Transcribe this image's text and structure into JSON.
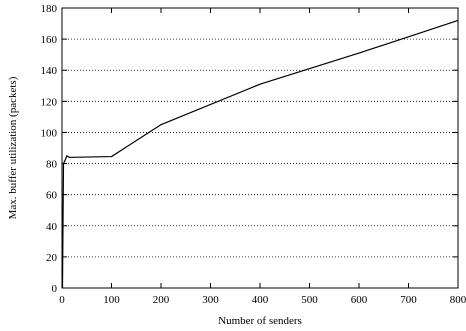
{
  "chart_data": {
    "type": "line",
    "title": "",
    "xlabel": "Number of senders",
    "ylabel": "Max. buffer utilization (packets)",
    "xlim": [
      0,
      800
    ],
    "ylim": [
      0,
      180
    ],
    "xticks": [
      0,
      100,
      200,
      300,
      400,
      500,
      600,
      700,
      800
    ],
    "yticks": [
      0,
      20,
      40,
      60,
      80,
      100,
      120,
      140,
      160,
      180
    ],
    "xtick_labels": [
      "0",
      "100",
      "200",
      "300",
      "400",
      "500",
      "600",
      "700",
      "800"
    ],
    "ytick_labels": [
      "0",
      "20",
      "40",
      "60",
      "80",
      "100",
      "120",
      "140",
      "160",
      "180"
    ],
    "grid": {
      "horizontal": true,
      "style": "dotted"
    },
    "legend": "none",
    "series": [
      {
        "color": "#000000",
        "x": [
          1,
          3,
          6,
          10,
          15,
          20,
          100,
          200,
          400,
          600,
          800
        ],
        "y": [
          0,
          80,
          82,
          85,
          84,
          84,
          84.5,
          105,
          131,
          151,
          172
        ]
      }
    ]
  }
}
